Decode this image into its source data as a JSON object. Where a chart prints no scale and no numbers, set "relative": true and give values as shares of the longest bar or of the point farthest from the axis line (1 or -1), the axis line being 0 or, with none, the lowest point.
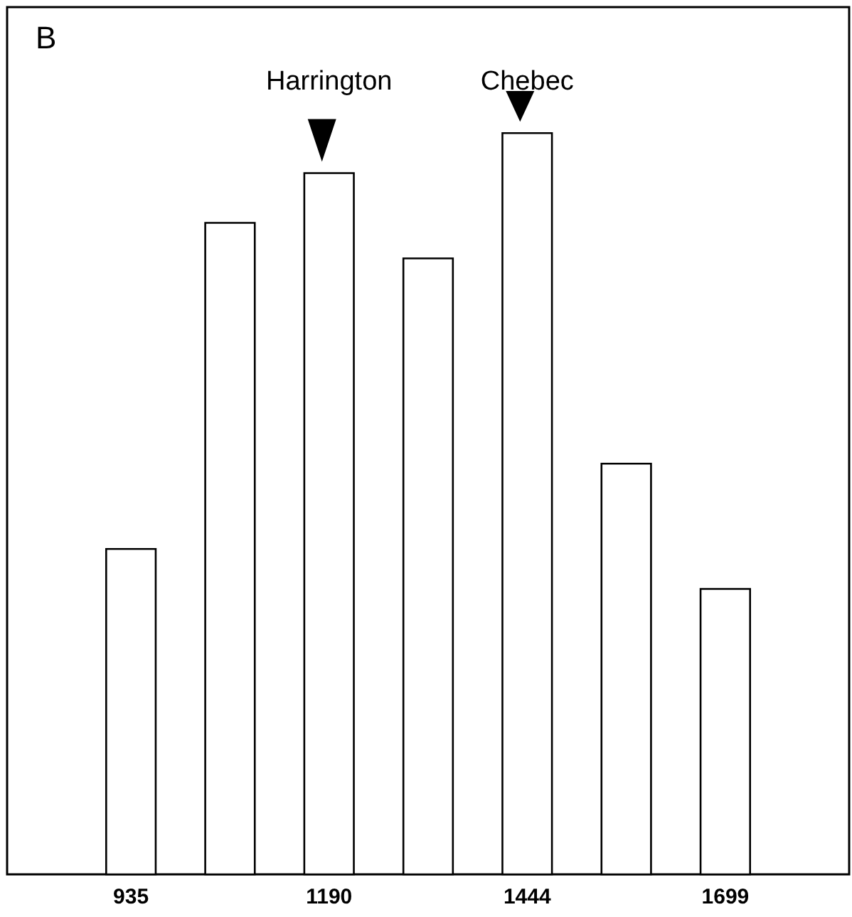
{
  "chart_data": {
    "type": "bar",
    "relative": true,
    "categories": [
      "935",
      null,
      "1190",
      null,
      "1444",
      null,
      "1699"
    ],
    "values": [
      0.439,
      0.879,
      0.946,
      0.831,
      1,
      0.554,
      0.385
    ],
    "color": "#ffffff",
    "annotations": [
      "B",
      {
        "text": "Harrington",
        "x": "1190",
        "y": 0.946
      },
      {
        "text": "Chebec",
        "x": "1444",
        "y": 1
      }
    ]
  }
}
